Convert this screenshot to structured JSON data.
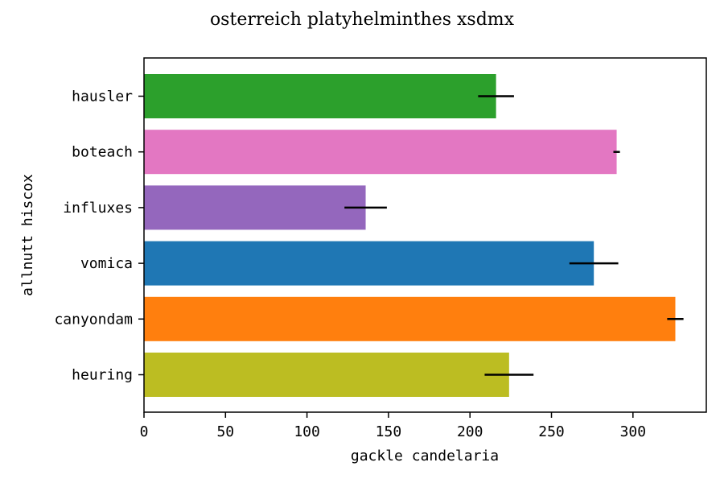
{
  "chart_data": {
    "type": "bar",
    "orientation": "horizontal",
    "title": "osterreich platyhelminthes xsdmx",
    "xlabel": "gackle candelaria",
    "ylabel": "allnutt hiscox",
    "xlim": [
      0,
      345
    ],
    "xticks": [
      "0",
      "50",
      "100",
      "150",
      "200",
      "250",
      "300"
    ],
    "grid": false,
    "categories": [
      "hausler",
      "boteach",
      "influxes",
      "vomica",
      "canyondam",
      "heuring"
    ],
    "values": [
      216,
      290,
      136,
      276,
      326,
      224
    ],
    "errors": [
      11,
      2,
      13,
      15,
      5,
      15
    ],
    "colors": [
      "#2ca02c",
      "#e377c2",
      "#9467bd",
      "#1f77b4",
      "#ff7f0e",
      "#bcbd22"
    ],
    "error_color": "#000000"
  }
}
